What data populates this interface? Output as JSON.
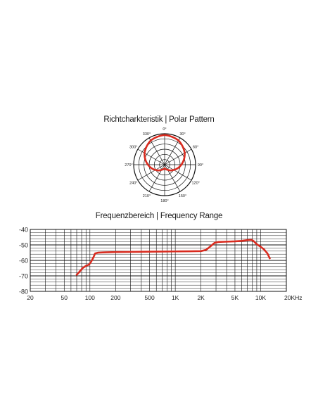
{
  "polar": {
    "title": "Richtcharkteristik | Polar Pattern",
    "angle_labels": [
      "0°",
      "30°",
      "60°",
      "90°",
      "120°",
      "150°",
      "180°",
      "210°",
      "240°",
      "270°",
      "300°",
      "330°"
    ],
    "line_color": "#d92b1f"
  },
  "frequency": {
    "title": "Frequenzbereich | Frequency Range",
    "line_color": "#d92b1f"
  },
  "chart_data": [
    {
      "type": "line",
      "subtype": "polar",
      "title": "Richtcharkteristik | Polar Pattern",
      "angle_tick_labels": [
        "0°",
        "30°",
        "60°",
        "90°",
        "120°",
        "150°",
        "180°",
        "210°",
        "240°",
        "270°",
        "300°",
        "330°"
      ],
      "rings": 6,
      "grid": true,
      "series": [
        {
          "angle": [
            0,
            30,
            60,
            90,
            120,
            150,
            180,
            210,
            240,
            270,
            300,
            330,
            360
          ],
          "response": [
            1.0,
            0.93,
            0.75,
            0.5,
            0.26,
            0.08,
            0.0,
            0.08,
            0.26,
            0.5,
            0.75,
            0.93,
            1.0
          ]
        }
      ]
    },
    {
      "type": "line",
      "title": "Frequenzbereich | Frequency Range",
      "x_scale": "log",
      "x_tick_values": [
        20,
        50,
        100,
        200,
        500,
        1000,
        2000,
        5000,
        10000,
        20000
      ],
      "x_tick_labels": [
        "20",
        "50",
        "100",
        "200",
        "500",
        "1K",
        "2K",
        "5K",
        "10K",
        "20KHz"
      ],
      "y_tick_values": [
        -40,
        -50,
        -60,
        -70,
        -80
      ],
      "y_tick_labels": [
        "-40",
        "-50",
        "-60",
        "-70",
        "-80"
      ],
      "xlim": [
        20,
        20000
      ],
      "ylim": [
        -80,
        -40
      ],
      "grid": true,
      "series": [
        {
          "x": [
            70,
            75,
            82,
            90,
            97,
            103,
            110,
            115,
            125,
            150,
            200,
            400,
            700,
            1000,
            1500,
            2000,
            2300,
            2600,
            2900,
            3200,
            4000,
            5000,
            6000,
            7000,
            7800,
            8300,
            9000,
            10000,
            11000,
            12000,
            12800
          ],
          "y": [
            -69.3,
            -67.5,
            -65,
            -63.5,
            -62.8,
            -61,
            -58,
            -55.5,
            -55,
            -54.8,
            -54.6,
            -54.4,
            -54.3,
            -54.2,
            -54.1,
            -54.0,
            -53.2,
            -50.8,
            -48.6,
            -48.1,
            -47.9,
            -47.7,
            -47.4,
            -46.9,
            -46.7,
            -47.6,
            -49.5,
            -51.2,
            -53,
            -55.5,
            -58.7
          ]
        }
      ]
    }
  ]
}
